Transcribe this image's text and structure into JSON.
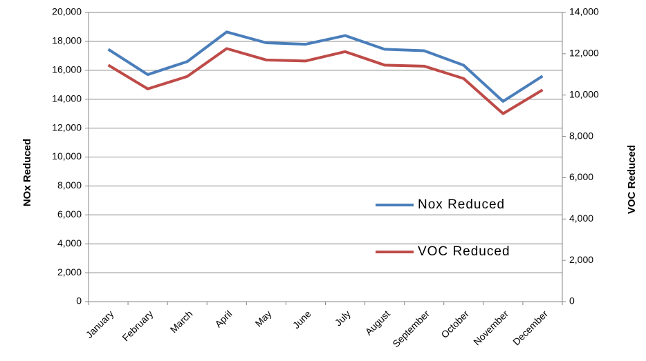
{
  "chart_data": {
    "type": "line",
    "categories": [
      "January",
      "February",
      "March",
      "April",
      "May",
      "June",
      "July",
      "August",
      "September",
      "October",
      "November",
      "December"
    ],
    "y_label": "NOx Reduced",
    "y2_label": "VOC Reduced",
    "ylim": [
      0,
      20000
    ],
    "yticks": [
      0,
      {
        "value": 2000,
        "label": "2,000"
      },
      {
        "value": 4000,
        "label": "4,000"
      },
      {
        "value": 6000,
        "label": "6,000"
      },
      {
        "value": 8000,
        "label": "8,000"
      },
      {
        "value": 10000,
        "label": "10,000"
      },
      {
        "value": 12000,
        "label": "12,000"
      },
      {
        "value": 14000,
        "label": "14,000"
      },
      {
        "value": 16000,
        "label": "16,000"
      },
      {
        "value": 18000,
        "label": "18,000"
      },
      {
        "value": 20000,
        "label": "20,000"
      }
    ],
    "y2lim": [
      0,
      14000
    ],
    "y2ticks": [
      0,
      {
        "value": 2000,
        "label": "2,000"
      },
      {
        "value": 4000,
        "label": "4,000"
      },
      {
        "value": 6000,
        "label": "6,000"
      },
      {
        "value": 8000,
        "label": "8,000"
      },
      {
        "value": 10000,
        "label": "10,000"
      },
      {
        "value": 12000,
        "label": "12,000"
      },
      {
        "value": 14000,
        "label": "14,000"
      }
    ],
    "grid": true,
    "legend": "right",
    "series": [
      {
        "name": "Nox Reduced",
        "color": "#4a7ebb",
        "values": [
          17450,
          15700,
          16600,
          18650,
          17900,
          17800,
          18400,
          17450,
          17350,
          16350,
          13850,
          15600
        ]
      },
      {
        "name": "VOC Reduced",
        "color": "#be4b48",
        "axis": "y2",
        "values": [
          11450,
          10300,
          10900,
          12250,
          11700,
          11650,
          12100,
          11450,
          11400,
          10800,
          9100,
          10250
        ]
      }
    ]
  }
}
